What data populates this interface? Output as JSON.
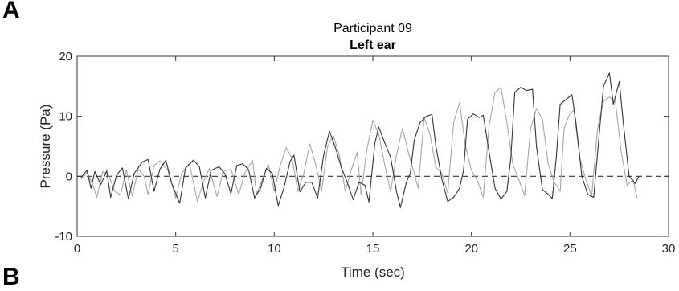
{
  "panel_label": "A",
  "next_panel_label": "B",
  "chart_data": {
    "type": "line",
    "title": "Participant 09",
    "subtitle": "Left ear",
    "xlabel": "Time (sec)",
    "ylabel": "Pressure (Pa)",
    "xlim": [
      0,
      30
    ],
    "ylim": [
      -10,
      20
    ],
    "x_ticks": [
      "0",
      "5",
      "10",
      "15",
      "20",
      "25",
      "30"
    ],
    "y_ticks": [
      "-10",
      "0",
      "10",
      "20"
    ],
    "grid": false,
    "legend": "none",
    "reference_line": {
      "y": 0,
      "style": "dashed"
    },
    "series": [
      {
        "color": "#333333",
        "points": [
          [
            0.2,
            -0.2
          ],
          [
            0.5,
            1
          ],
          [
            0.7,
            -2
          ],
          [
            0.9,
            0.8
          ],
          [
            1.2,
            -1.4
          ],
          [
            1.5,
            0.9
          ],
          [
            1.7,
            -3.5
          ],
          [
            2,
            0.2
          ],
          [
            2.3,
            1.4
          ],
          [
            2.6,
            -3.8
          ],
          [
            2.9,
            0.5
          ],
          [
            3.3,
            2.4
          ],
          [
            3.6,
            2.8
          ],
          [
            3.9,
            -2.5
          ],
          [
            4.2,
            1.2
          ],
          [
            4.5,
            2.7
          ],
          [
            4.8,
            -1.2
          ],
          [
            5.2,
            -4.5
          ],
          [
            5.5,
            1.4
          ],
          [
            5.9,
            2.7
          ],
          [
            6.2,
            1.6
          ],
          [
            6.5,
            -3.6
          ],
          [
            6.8,
            1
          ],
          [
            7.2,
            1.6
          ],
          [
            7.5,
            0.4
          ],
          [
            7.8,
            -2.9
          ],
          [
            8.1,
            1.8
          ],
          [
            8.4,
            2.1
          ],
          [
            8.7,
            1.1
          ],
          [
            9,
            -3.6
          ],
          [
            9.3,
            -2
          ],
          [
            9.6,
            1.3
          ],
          [
            9.9,
            0.5
          ],
          [
            10.2,
            -4.9
          ],
          [
            10.5,
            -1.8
          ],
          [
            10.8,
            2.5
          ],
          [
            11,
            3.5
          ],
          [
            11.3,
            -2.6
          ],
          [
            11.6,
            -1
          ],
          [
            11.9,
            -1
          ],
          [
            12.2,
            -3.6
          ],
          [
            12.5,
            3.5
          ],
          [
            12.8,
            7.5
          ],
          [
            13.1,
            4.8
          ],
          [
            13.4,
            1.5
          ],
          [
            13.7,
            -1
          ],
          [
            14,
            -3.9
          ],
          [
            14.3,
            -1
          ],
          [
            14.6,
            -1.5
          ],
          [
            14.8,
            -4.3
          ],
          [
            15.1,
            5.5
          ],
          [
            15.3,
            8.2
          ],
          [
            15.6,
            5.6
          ],
          [
            15.9,
            3.2
          ],
          [
            16.2,
            -2.5
          ],
          [
            16.4,
            -5.2
          ],
          [
            16.7,
            -1
          ],
          [
            16.9,
            0.5
          ],
          [
            17.1,
            6
          ],
          [
            17.4,
            9
          ],
          [
            17.7,
            10
          ],
          [
            18,
            10.3
          ],
          [
            18.2,
            5
          ],
          [
            18.5,
            -0.5
          ],
          [
            18.8,
            -4.2
          ],
          [
            19.1,
            -3.5
          ],
          [
            19.4,
            -2
          ],
          [
            19.6,
            1
          ],
          [
            19.8,
            9.5
          ],
          [
            20.1,
            10.4
          ],
          [
            20.4,
            9.8
          ],
          [
            20.6,
            10.2
          ],
          [
            20.9,
            4
          ],
          [
            21.2,
            -2
          ],
          [
            21.5,
            -3.8
          ],
          [
            21.8,
            -2.5
          ],
          [
            22,
            3
          ],
          [
            22.2,
            14
          ],
          [
            22.5,
            14.8
          ],
          [
            22.8,
            14.3
          ],
          [
            23.1,
            14.5
          ],
          [
            23.3,
            5
          ],
          [
            23.6,
            -2.2
          ],
          [
            23.9,
            -3
          ],
          [
            24.1,
            -3.7
          ],
          [
            24.3,
            3
          ],
          [
            24.5,
            12
          ],
          [
            24.8,
            12.8
          ],
          [
            25.1,
            13.6
          ],
          [
            25.3,
            9
          ],
          [
            25.6,
            0
          ],
          [
            25.9,
            -3
          ],
          [
            26.2,
            -3.5
          ],
          [
            26.4,
            4
          ],
          [
            26.7,
            15
          ],
          [
            27,
            17.2
          ],
          [
            27.2,
            12
          ],
          [
            27.5,
            15.8
          ],
          [
            27.7,
            9
          ],
          [
            28,
            0
          ],
          [
            28.3,
            -1.2
          ],
          [
            28.5,
            0
          ]
        ]
      },
      {
        "color": "#a6a6a6",
        "points": [
          [
            0.2,
            -0.5
          ],
          [
            0.5,
            0.6
          ],
          [
            0.8,
            -1.5
          ],
          [
            1,
            -3.5
          ],
          [
            1.3,
            0.8
          ],
          [
            1.6,
            0.2
          ],
          [
            1.9,
            -2.5
          ],
          [
            2.2,
            -3.1
          ],
          [
            2.5,
            1
          ],
          [
            2.8,
            -3.3
          ],
          [
            3.1,
            1.2
          ],
          [
            3.4,
            0
          ],
          [
            3.6,
            -3
          ],
          [
            3.9,
            1.8
          ],
          [
            4.2,
            2.6
          ],
          [
            4.6,
            1
          ],
          [
            5,
            -3.6
          ],
          [
            5.3,
            0.5
          ],
          [
            5.7,
            2.1
          ],
          [
            6.1,
            -4.2
          ],
          [
            6.4,
            -1
          ],
          [
            6.7,
            1.3
          ],
          [
            7.1,
            -3.4
          ],
          [
            7.4,
            0.8
          ],
          [
            7.8,
            1.2
          ],
          [
            8.2,
            -3
          ],
          [
            8.5,
            0.5
          ],
          [
            8.9,
            2.7
          ],
          [
            9.1,
            -3
          ],
          [
            9.4,
            -0.5
          ],
          [
            9.7,
            2
          ],
          [
            10,
            -2.5
          ],
          [
            10.3,
            1.8
          ],
          [
            10.6,
            4.8
          ],
          [
            10.9,
            3
          ],
          [
            11.2,
            -2.5
          ],
          [
            11.5,
            0.5
          ],
          [
            11.8,
            5.4
          ],
          [
            12.1,
            2
          ],
          [
            12.4,
            -2.5
          ],
          [
            12.7,
            5
          ],
          [
            13,
            6.8
          ],
          [
            13.3,
            3.5
          ],
          [
            13.6,
            -2.5
          ],
          [
            13.9,
            1
          ],
          [
            14.2,
            4
          ],
          [
            14.4,
            -3
          ],
          [
            14.7,
            4.5
          ],
          [
            15,
            9.3
          ],
          [
            15.3,
            7
          ],
          [
            15.6,
            2
          ],
          [
            15.9,
            -2.6
          ],
          [
            16.2,
            3.5
          ],
          [
            16.5,
            8
          ],
          [
            16.8,
            4
          ],
          [
            17.1,
            0.5
          ],
          [
            17.3,
            -2
          ],
          [
            17.6,
            9.8
          ],
          [
            17.9,
            7
          ],
          [
            18.2,
            1.5
          ],
          [
            18.5,
            0.5
          ],
          [
            18.8,
            -2.8
          ],
          [
            19.1,
            9
          ],
          [
            19.4,
            12.3
          ],
          [
            19.7,
            5
          ],
          [
            20,
            1
          ],
          [
            20.3,
            -0.7
          ],
          [
            20.6,
            -3.5
          ],
          [
            20.9,
            8.5
          ],
          [
            21.2,
            14
          ],
          [
            21.5,
            14.8
          ],
          [
            21.8,
            9
          ],
          [
            22.1,
            2
          ],
          [
            22.4,
            -0.5
          ],
          [
            22.7,
            -3.2
          ],
          [
            23,
            8
          ],
          [
            23.3,
            11.3
          ],
          [
            23.6,
            9.5
          ],
          [
            23.9,
            2
          ],
          [
            24.2,
            -1
          ],
          [
            24.5,
            -2.5
          ],
          [
            24.7,
            8
          ],
          [
            25,
            10.5
          ],
          [
            25.2,
            11
          ],
          [
            25.5,
            3
          ],
          [
            25.8,
            -0.5
          ],
          [
            26.1,
            -3.3
          ],
          [
            26.4,
            8
          ],
          [
            26.7,
            12.5
          ],
          [
            27,
            13.2
          ],
          [
            27.3,
            12.5
          ],
          [
            27.6,
            4
          ],
          [
            27.9,
            -1.5
          ],
          [
            28.2,
            -0.5
          ],
          [
            28.4,
            -3.6
          ]
        ]
      }
    ]
  }
}
